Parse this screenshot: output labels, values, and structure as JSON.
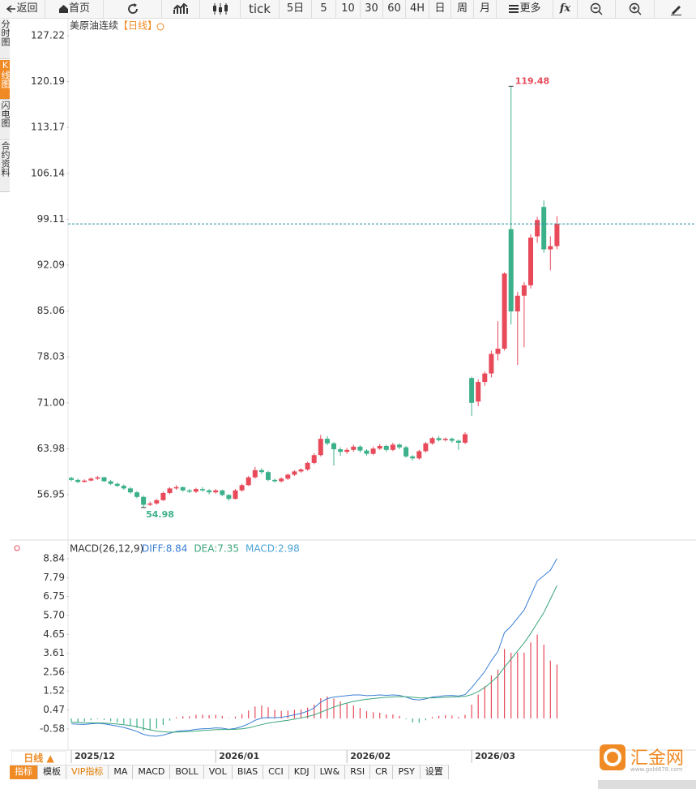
{
  "toolbar": {
    "items": [
      "返回",
      "首页",
      "tick",
      "5日",
      "5",
      "10",
      "30",
      "60",
      "4H",
      "日",
      "周",
      "月",
      "更多",
      "fx"
    ]
  },
  "side_tabs": [
    "分时图",
    "K线图",
    "闪电图",
    "合约资料"
  ],
  "chart_data": [
    {
      "type": "candlestick",
      "title": "美原油连续",
      "period": "【日线】",
      "up_color": "#e84a5a",
      "down_color": "#3cb08a",
      "ylim": [
        50.12,
        129.95
      ],
      "yticks": [
        127.22,
        120.19,
        113.17,
        106.14,
        99.11,
        92.09,
        85.06,
        78.03,
        {
          "value": 71,
          "label": "71.00"
        },
        63.98,
        56.95
      ],
      "x": [
        "2025/12",
        null,
        null,
        null,
        null,
        null,
        null,
        null,
        null,
        null,
        null,
        null,
        null,
        null,
        null,
        null,
        null,
        null,
        null,
        null,
        null,
        null,
        "2026/01",
        null,
        null,
        null,
        null,
        null,
        null,
        null,
        null,
        null,
        null,
        null,
        null,
        null,
        null,
        null,
        null,
        null,
        null,
        null,
        "2026/02",
        null,
        null,
        null,
        null,
        null,
        null,
        null,
        null,
        null,
        null,
        null,
        null,
        null,
        null,
        null,
        null,
        null,
        null,
        "2026/03",
        null,
        null,
        null,
        null,
        null,
        null,
        null,
        null,
        null,
        null,
        null,
        null,
        null
      ],
      "ohlc": [
        [
          59.5,
          59.7,
          59.0,
          59.2
        ],
        [
          59.2,
          59.4,
          58.7,
          58.9
        ],
        [
          58.9,
          59.3,
          58.8,
          59.1
        ],
        [
          59.1,
          59.6,
          59.0,
          59.4
        ],
        [
          59.4,
          59.8,
          59.2,
          59.6
        ],
        [
          59.6,
          59.7,
          58.9,
          59.0
        ],
        [
          59.0,
          59.2,
          58.4,
          58.6
        ],
        [
          58.6,
          58.8,
          58.1,
          58.3
        ],
        [
          58.3,
          58.5,
          57.7,
          57.9
        ],
        [
          57.9,
          58.1,
          57.1,
          57.3
        ],
        [
          57.3,
          57.5,
          56.4,
          56.6
        ],
        [
          56.6,
          56.8,
          54.98,
          55.4
        ],
        [
          55.4,
          55.9,
          55.2,
          55.6
        ],
        [
          55.6,
          56.3,
          55.4,
          56.1
        ],
        [
          56.1,
          57.4,
          56.0,
          57.2
        ],
        [
          57.2,
          58.1,
          57.0,
          57.9
        ],
        [
          57.9,
          58.4,
          57.7,
          58.1
        ],
        [
          58.1,
          58.2,
          57.4,
          57.6
        ],
        [
          57.6,
          57.8,
          57.2,
          57.4
        ],
        [
          57.4,
          58.0,
          57.2,
          57.8
        ],
        [
          57.8,
          58.1,
          57.4,
          57.6
        ],
        [
          57.6,
          57.8,
          57.0,
          57.3
        ],
        [
          57.3,
          57.8,
          57.1,
          57.6
        ],
        [
          57.6,
          57.7,
          56.7,
          56.9
        ],
        [
          56.9,
          57.0,
          56.0,
          56.3
        ],
        [
          56.3,
          57.8,
          56.2,
          57.6
        ],
        [
          57.6,
          58.6,
          57.4,
          58.4
        ],
        [
          58.4,
          59.8,
          58.3,
          59.6
        ],
        [
          59.6,
          61.2,
          59.4,
          60.7
        ],
        [
          60.7,
          61.0,
          60.1,
          60.4
        ],
        [
          60.4,
          60.6,
          59.0,
          59.2
        ],
        [
          59.2,
          59.4,
          58.8,
          59.0
        ],
        [
          59.0,
          59.6,
          58.8,
          59.4
        ],
        [
          59.4,
          60.2,
          59.2,
          60.0
        ],
        [
          60.0,
          60.7,
          59.8,
          60.5
        ],
        [
          60.5,
          61.0,
          60.3,
          60.8
        ],
        [
          60.8,
          62.0,
          60.6,
          61.8
        ],
        [
          61.8,
          63.3,
          61.6,
          63.0
        ],
        [
          63.0,
          66.1,
          62.8,
          65.5
        ],
        [
          65.5,
          65.9,
          64.5,
          64.8
        ],
        [
          64.8,
          65.0,
          61.4,
          63.9
        ],
        [
          63.9,
          64.2,
          62.9,
          63.5
        ],
        [
          63.5,
          64.1,
          63.2,
          63.8
        ],
        [
          63.8,
          64.6,
          63.5,
          64.3
        ],
        [
          64.3,
          64.5,
          63.4,
          63.7
        ],
        [
          63.7,
          63.9,
          62.9,
          63.2
        ],
        [
          63.2,
          64.3,
          63.0,
          64.0
        ],
        [
          64.0,
          64.7,
          63.8,
          64.4
        ],
        [
          64.4,
          64.6,
          63.5,
          63.8
        ],
        [
          63.8,
          64.9,
          63.6,
          64.6
        ],
        [
          64.6,
          64.8,
          63.9,
          64.2
        ],
        [
          64.2,
          64.4,
          62.6,
          62.8
        ],
        [
          62.8,
          63.0,
          62.2,
          62.5
        ],
        [
          62.5,
          63.8,
          62.3,
          63.6
        ],
        [
          63.6,
          65.0,
          63.4,
          64.8
        ],
        [
          64.8,
          65.8,
          64.6,
          65.6
        ],
        [
          65.6,
          65.9,
          65.1,
          65.3
        ],
        [
          65.3,
          65.7,
          65.1,
          65.5
        ],
        [
          65.5,
          65.7,
          64.9,
          65.2
        ],
        [
          65.2,
          65.4,
          63.8,
          64.9
        ],
        [
          64.9,
          66.5,
          64.7,
          66.2
        ],
        [
          74.8,
          75.0,
          69.0,
          71.0
        ],
        [
          71.2,
          74.6,
          70.5,
          74.2
        ],
        [
          74.2,
          75.8,
          73.6,
          75.5
        ],
        [
          75.5,
          79.0,
          74.9,
          78.5
        ],
        [
          78.5,
          83.5,
          77.5,
          79.3
        ],
        [
          79.3,
          91.0,
          79.0,
          90.8
        ],
        [
          97.6,
          119.48,
          83.0,
          85.0
        ],
        [
          85.0,
          88.0,
          76.8,
          87.4
        ],
        [
          87.4,
          89.5,
          79.5,
          89.0
        ],
        [
          89.0,
          96.8,
          88.5,
          96.3
        ],
        [
          96.5,
          99.5,
          95.5,
          99.0
        ],
        [
          101.0,
          102.0,
          94.0,
          94.5
        ],
        [
          94.5,
          96.5,
          91.3,
          95.0
        ],
        [
          95.0,
          99.6,
          94.5,
          98.4
        ]
      ]
    },
    {
      "type": "macd",
      "title": "MACD(26,12,9)",
      "ylim": [
        -1.75,
        9.06
      ],
      "yticks": [
        8.84,
        7.79,
        6.75,
        {
          "value": 5.7,
          "label": "5.70"
        },
        4.65,
        3.61,
        2.56,
        1.52,
        0.47,
        -0.58
      ],
      "series": [
        {
          "label": "DIFF:8.84",
          "color": "#3a7fd5",
          "values": [
            -0.3,
            -0.32,
            -0.33,
            -0.3,
            -0.27,
            -0.3,
            -0.36,
            -0.42,
            -0.5,
            -0.6,
            -0.72,
            -0.88,
            -0.96,
            -0.98,
            -0.92,
            -0.82,
            -0.72,
            -0.68,
            -0.66,
            -0.6,
            -0.57,
            -0.56,
            -0.52,
            -0.54,
            -0.6,
            -0.55,
            -0.45,
            -0.3,
            -0.1,
            0.02,
            0.05,
            0.04,
            0.06,
            0.12,
            0.2,
            0.28,
            0.4,
            0.58,
            0.9,
            1.1,
            1.18,
            1.22,
            1.26,
            1.3,
            1.3,
            1.26,
            1.27,
            1.3,
            1.28,
            1.3,
            1.28,
            1.18,
            1.06,
            1.02,
            1.08,
            1.18,
            1.22,
            1.26,
            1.27,
            1.24,
            1.32,
            1.7,
            2.15,
            2.6,
            3.2,
            3.7,
            4.75,
            5.1,
            5.55,
            6.0,
            6.8,
            7.6,
            7.9,
            8.2,
            8.84
          ]
        },
        {
          "label": "DEA:7.35",
          "color": "#3aa57a",
          "values": [
            -0.2,
            -0.22,
            -0.24,
            -0.25,
            -0.25,
            -0.26,
            -0.28,
            -0.31,
            -0.35,
            -0.4,
            -0.46,
            -0.55,
            -0.63,
            -0.7,
            -0.74,
            -0.76,
            -0.75,
            -0.74,
            -0.72,
            -0.7,
            -0.67,
            -0.65,
            -0.62,
            -0.61,
            -0.61,
            -0.6,
            -0.57,
            -0.52,
            -0.43,
            -0.34,
            -0.26,
            -0.2,
            -0.15,
            -0.1,
            -0.04,
            0.03,
            0.1,
            0.2,
            0.34,
            0.49,
            0.63,
            0.75,
            0.85,
            0.94,
            1.01,
            1.06,
            1.1,
            1.14,
            1.17,
            1.19,
            1.21,
            1.2,
            1.17,
            1.14,
            1.13,
            1.14,
            1.15,
            1.17,
            1.19,
            1.2,
            1.22,
            1.32,
            1.49,
            1.71,
            2.01,
            2.35,
            2.83,
            3.28,
            3.73,
            4.18,
            4.7,
            5.28,
            5.86,
            6.6,
            7.35
          ]
        },
        {
          "label": "MACD:2.98",
          "color": "#4aa3d8",
          "up_color": "#e84a5a",
          "down_color": "#3cb08a",
          "values": [
            -0.2,
            -0.2,
            -0.18,
            -0.1,
            -0.04,
            -0.08,
            -0.16,
            -0.22,
            -0.3,
            -0.4,
            -0.52,
            -0.66,
            -0.66,
            -0.56,
            -0.36,
            -0.12,
            0.06,
            0.12,
            0.12,
            0.2,
            0.2,
            0.18,
            0.2,
            0.14,
            0.02,
            0.1,
            0.24,
            0.44,
            0.66,
            0.72,
            0.62,
            0.48,
            0.42,
            0.44,
            0.48,
            0.5,
            0.6,
            0.76,
            1.12,
            1.22,
            1.1,
            0.94,
            0.82,
            0.72,
            0.58,
            0.4,
            0.34,
            0.32,
            0.22,
            0.22,
            0.14,
            -0.04,
            -0.22,
            -0.24,
            -0.1,
            0.08,
            0.14,
            0.18,
            0.16,
            0.08,
            0.2,
            0.76,
            1.32,
            1.78,
            2.38,
            2.7,
            3.84,
            3.64,
            3.64,
            3.64,
            4.2,
            4.64,
            4.08,
            3.2,
            2.98
          ]
        }
      ]
    }
  ],
  "bottom": {
    "period": "日线 ▲",
    "tabs": [
      "指标",
      "模板",
      "VIP指标",
      "MA",
      "MACD",
      "BOLL",
      "VOL",
      "BIAS",
      "CCI",
      "KDJ",
      "LW&",
      "RSI",
      "CR",
      "PSY",
      "设置"
    ]
  },
  "logo": {
    "name": "汇金网",
    "url": "www.gold678.com"
  }
}
